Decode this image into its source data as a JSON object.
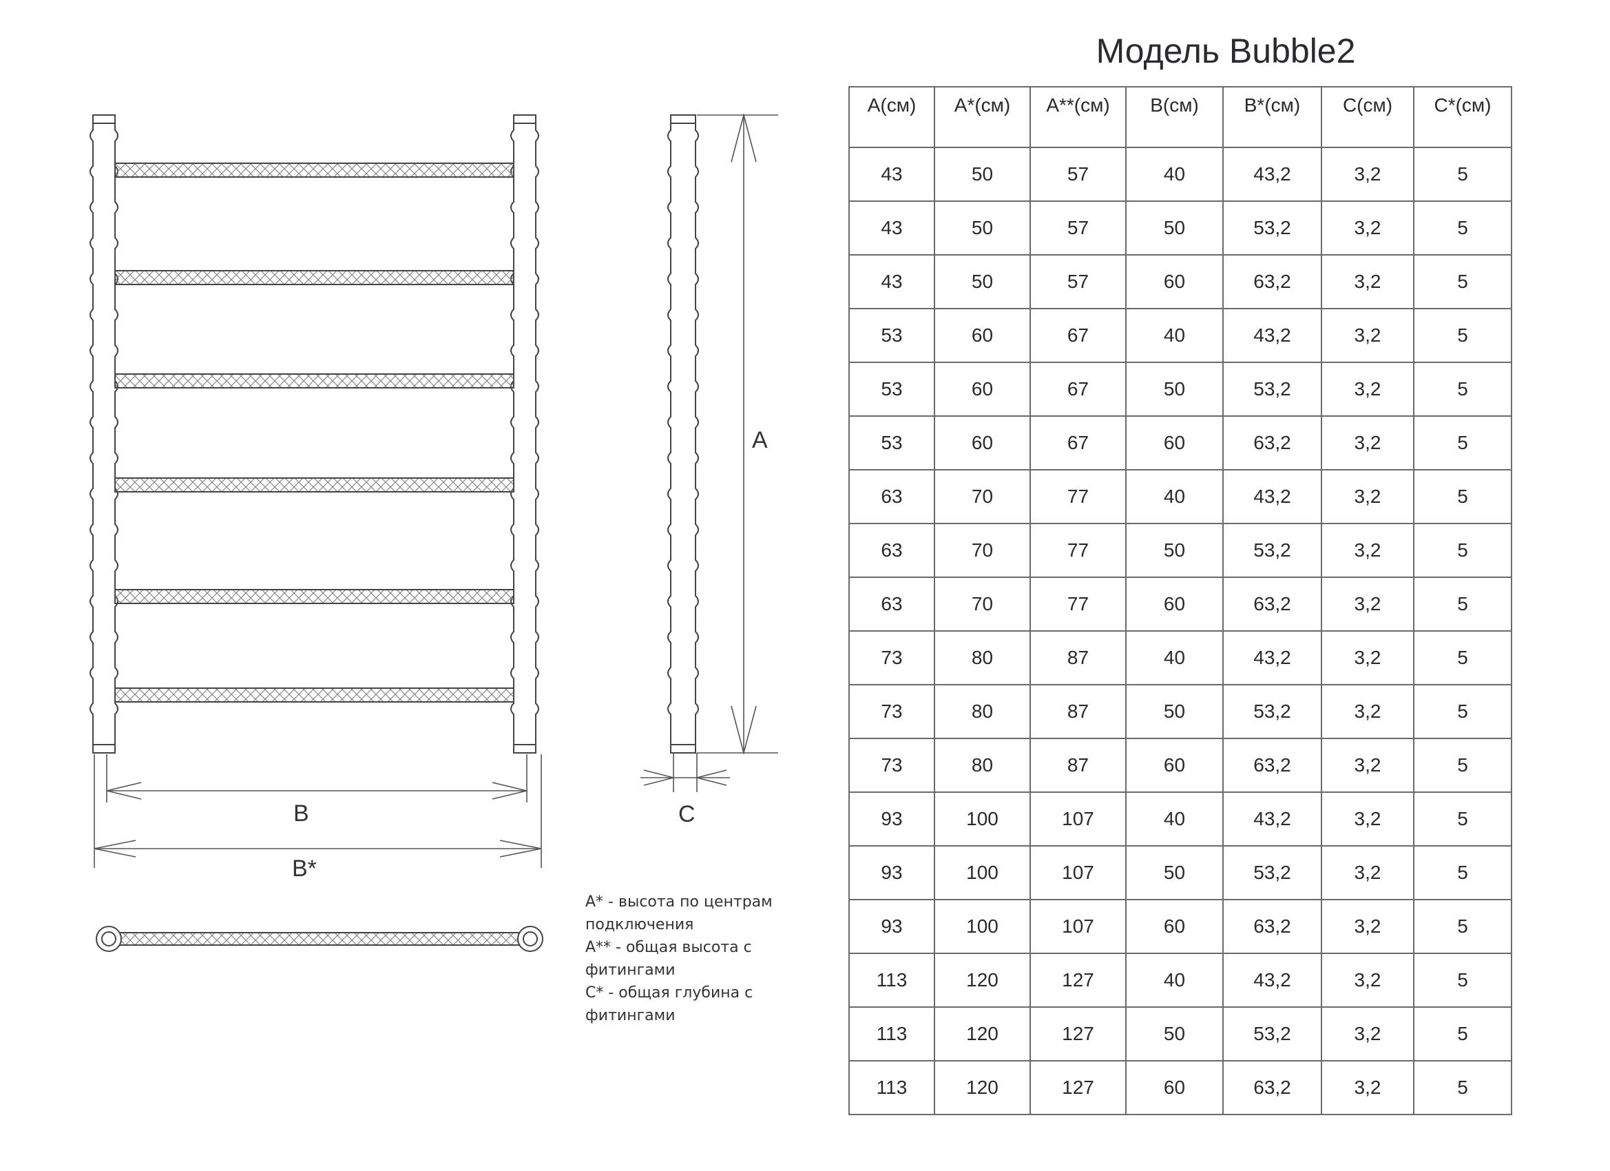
{
  "title": "Модель Bubble2",
  "drawing_labels": {
    "a": "A",
    "b": "B",
    "b_star": "B*",
    "c": "C"
  },
  "notes": [
    "A* - высота по центрам подключения",
    "A** - общая высота с фитингами",
    "C* - общая глубина с фитингами"
  ],
  "table": {
    "headers": [
      "A(см)",
      "A*(см)",
      "A**(см)",
      "B(см)",
      "B*(см)",
      "C(см)",
      "C*(см)"
    ],
    "rows": [
      [
        "43",
        "50",
        "57",
        "40",
        "43,2",
        "3,2",
        "5"
      ],
      [
        "43",
        "50",
        "57",
        "50",
        "53,2",
        "3,2",
        "5"
      ],
      [
        "43",
        "50",
        "57",
        "60",
        "63,2",
        "3,2",
        "5"
      ],
      [
        "53",
        "60",
        "67",
        "40",
        "43,2",
        "3,2",
        "5"
      ],
      [
        "53",
        "60",
        "67",
        "50",
        "53,2",
        "3,2",
        "5"
      ],
      [
        "53",
        "60",
        "67",
        "60",
        "63,2",
        "3,2",
        "5"
      ],
      [
        "63",
        "70",
        "77",
        "40",
        "43,2",
        "3,2",
        "5"
      ],
      [
        "63",
        "70",
        "77",
        "50",
        "53,2",
        "3,2",
        "5"
      ],
      [
        "63",
        "70",
        "77",
        "60",
        "63,2",
        "3,2",
        "5"
      ],
      [
        "73",
        "80",
        "87",
        "40",
        "43,2",
        "3,2",
        "5"
      ],
      [
        "73",
        "80",
        "87",
        "50",
        "53,2",
        "3,2",
        "5"
      ],
      [
        "73",
        "80",
        "87",
        "60",
        "63,2",
        "3,2",
        "5"
      ],
      [
        "93",
        "100",
        "107",
        "40",
        "43,2",
        "3,2",
        "5"
      ],
      [
        "93",
        "100",
        "107",
        "50",
        "53,2",
        "3,2",
        "5"
      ],
      [
        "93",
        "100",
        "107",
        "60",
        "63,2",
        "3,2",
        "5"
      ],
      [
        "113",
        "120",
        "127",
        "40",
        "43,2",
        "3,2",
        "5"
      ],
      [
        "113",
        "120",
        "127",
        "50",
        "53,2",
        "3,2",
        "5"
      ],
      [
        "113",
        "120",
        "127",
        "60",
        "63,2",
        "3,2",
        "5"
      ]
    ]
  }
}
